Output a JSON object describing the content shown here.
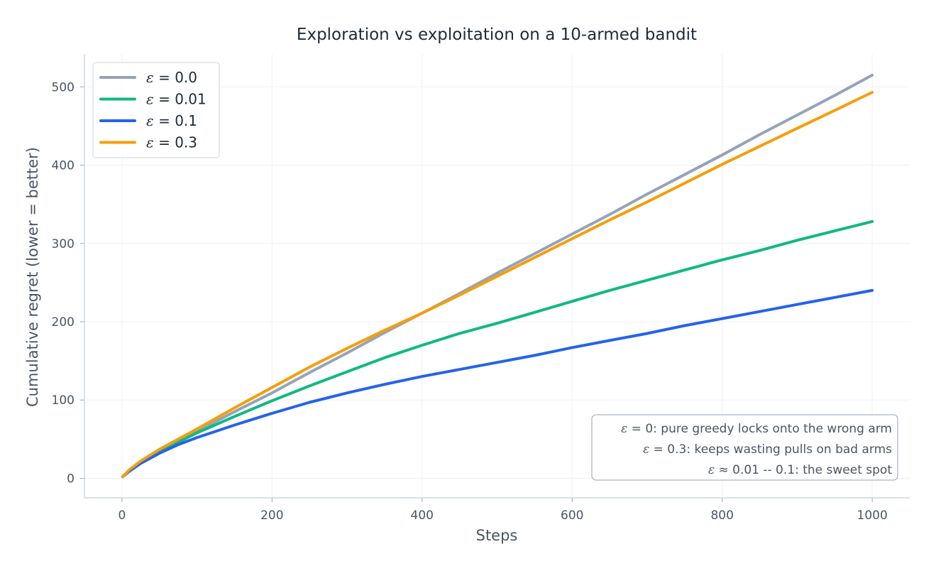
{
  "chart_data": {
    "type": "line",
    "title": "Exploration vs exploitation on a 10-armed bandit",
    "xlabel": "Steps",
    "ylabel": "Cumulative regret  (lower = better)",
    "xlim": [
      -50,
      1050
    ],
    "ylim": [
      -25,
      542
    ],
    "x_ticks": [
      0,
      200,
      400,
      600,
      800,
      1000
    ],
    "y_ticks": [
      0,
      100,
      200,
      300,
      400,
      500
    ],
    "grid": true,
    "legend_position": "top-left",
    "x": [
      1,
      10,
      25,
      50,
      75,
      100,
      150,
      200,
      250,
      300,
      350,
      400,
      450,
      500,
      550,
      600,
      650,
      700,
      750,
      800,
      850,
      900,
      950,
      1000
    ],
    "series": [
      {
        "name_prefix": "ε",
        "name_value": "0.0",
        "color": "#94a3b8",
        "values": [
          2,
          10,
          20,
          35,
          48,
          60,
          85,
          109,
          135,
          160,
          186,
          211,
          236,
          262,
          287,
          312,
          337,
          363,
          388,
          413,
          439,
          464,
          489,
          515
        ]
      },
      {
        "name_prefix": "ε",
        "name_value": "0.01",
        "color": "#10b981",
        "values": [
          2,
          10,
          20,
          34,
          46,
          58,
          79,
          99,
          118,
          136,
          154,
          170,
          185,
          198,
          212,
          226,
          240,
          253,
          266,
          279,
          291,
          304,
          316,
          328
        ]
      },
      {
        "name_prefix": "ε",
        "name_value": "0.1",
        "color": "#2563eb",
        "values": [
          2,
          9,
          19,
          32,
          43,
          52,
          68,
          83,
          97,
          109,
          120,
          130,
          139,
          148,
          157,
          167,
          176,
          185,
          195,
          204,
          213,
          222,
          231,
          240
        ]
      },
      {
        "name_prefix": "ε",
        "name_value": "0.3",
        "color": "#f59e0b",
        "values": [
          2,
          11,
          22,
          37,
          50,
          63,
          90,
          116,
          142,
          166,
          189,
          211,
          234,
          258,
          282,
          306,
          330,
          353,
          377,
          401,
          424,
          447,
          470,
          493
        ]
      }
    ],
    "annotations": [
      {
        "eps": "ε",
        "relation": " = 0",
        "text": ": pure greedy locks onto the wrong arm"
      },
      {
        "eps": "ε",
        "relation": " = 0.3",
        "text": ": keeps wasting pulls on bad arms"
      },
      {
        "eps": "ε",
        "relation": " ≈ 0.01 -- 0.1",
        "text": ": the sweet spot"
      }
    ]
  }
}
